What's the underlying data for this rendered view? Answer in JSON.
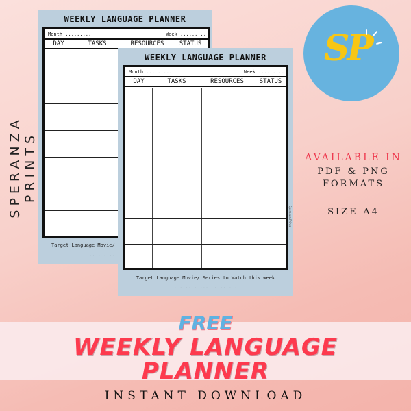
{
  "brand": {
    "vertical_name": "SPERANZA PRINTS",
    "logo_text": "SP",
    "logo_color": "#67b3df",
    "logo_letter_color": "#f7c614",
    "planner_side_mark": "Speranza Prints"
  },
  "planner": {
    "title": "WEEKLY LANGUAGE PLANNER",
    "month_label": "Month .........",
    "week_label": "Week .........",
    "columns": [
      "DAY",
      "TASKS",
      "RESOURCES",
      "STATUS"
    ],
    "row_count": 7,
    "footer_text": "Target Language Movie/ Series to Watch this week",
    "footer_text_back": "Target Language Movie/",
    "footer_dots": "......................",
    "footer_dots_back": ".........."
  },
  "info": {
    "available": "AVAILABLE IN",
    "formats1": "PDF & PNG",
    "formats2": "FORMATS",
    "size": "SIZE-A4",
    "accent": "#ee3a4f"
  },
  "banner": {
    "free": "FREE",
    "line1": "WEEKLY LANGUAGE",
    "line2": "PLANNER",
    "cta": "INSTANT DOWNLOAD",
    "free_color": "#5fb2e2",
    "title_color": "#fd3a4e"
  }
}
